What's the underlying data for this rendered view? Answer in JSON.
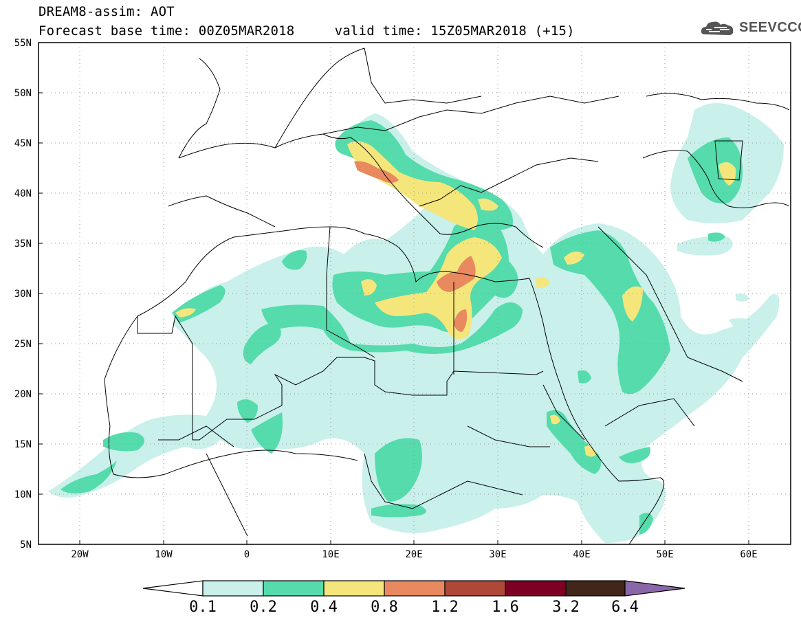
{
  "header": {
    "title_line1": "DREAM8-assim: AOT",
    "title_line2": "Forecast base time: 00Z05MAR2018     valid time: 15Z05MAR2018 (+15)"
  },
  "logo": {
    "text": "SEEVCCC",
    "icon": "cloud-icon"
  },
  "map": {
    "lat_labels": [
      "55N",
      "50N",
      "45N",
      "40N",
      "35N",
      "30N",
      "25N",
      "20N",
      "15N",
      "10N",
      "5N"
    ],
    "lon_labels": [
      "20W",
      "10W",
      "0",
      "10E",
      "20E",
      "30E",
      "40E",
      "50E",
      "60E"
    ],
    "lon_range": [
      -25,
      65
    ],
    "lat_range": [
      5,
      55
    ],
    "gridlines": "dotted"
  },
  "colorbar": {
    "labels": [
      "0.1",
      "0.2",
      "0.4",
      "0.8",
      "1.2",
      "1.6",
      "3.2",
      "6.4"
    ],
    "colors": [
      "#ffffff",
      "#c9f0ea",
      "#55dbac",
      "#f5e67c",
      "#e8895f",
      "#b0483a",
      "#7d0024",
      "#40271a",
      "#8a67a8"
    ]
  }
}
